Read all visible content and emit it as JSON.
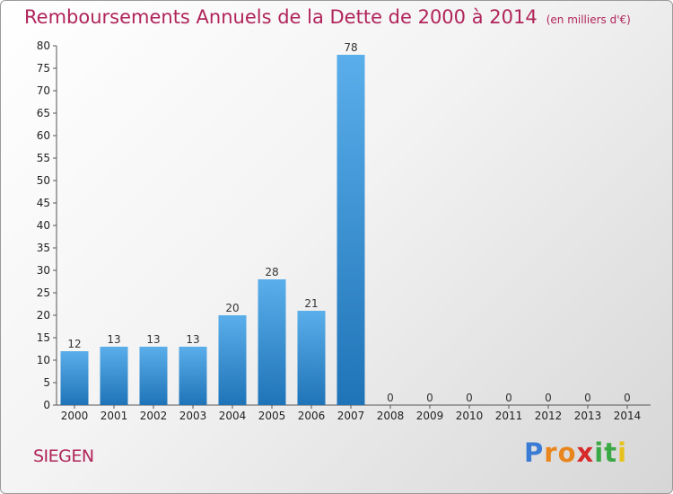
{
  "title": "Remboursements Annuels de la Dette de 2000 à 2014",
  "unit": "(en milliers d'€)",
  "city": "SIEGEN",
  "brand": {
    "letters": [
      {
        "ch": "P",
        "color": "#3a7bd5"
      },
      {
        "ch": "r",
        "color": "#e8851c"
      },
      {
        "ch": "o",
        "color": "#e8851c"
      },
      {
        "ch": "x",
        "color": "#d62a2a"
      },
      {
        "ch": "i",
        "color": "#3aa845"
      },
      {
        "ch": "t",
        "color": "#3aa845"
      },
      {
        "ch": "i",
        "color": "#e8c21c"
      }
    ]
  },
  "colors": {
    "bar_light": "#5aaeea",
    "bar_dark": "#1f74b8",
    "title": "#b0245a"
  },
  "chart_data": {
    "type": "bar",
    "title": "Remboursements Annuels de la Dette de 2000 à 2014",
    "subtitle": "(en milliers d'€)",
    "categories": [
      "2000",
      "2001",
      "2002",
      "2003",
      "2004",
      "2005",
      "2006",
      "2007",
      "2008",
      "2009",
      "2010",
      "2011",
      "2012",
      "2013",
      "2014"
    ],
    "values": [
      12,
      13,
      13,
      13,
      20,
      28,
      21,
      78,
      0,
      0,
      0,
      0,
      0,
      0,
      0
    ],
    "data_labels": [
      "12",
      "13",
      "13",
      "13",
      "20",
      "28",
      "21",
      "78",
      "0",
      "0",
      "0",
      "0",
      "0",
      "0",
      "0"
    ],
    "yticks": [
      "0",
      "5",
      "10",
      "15",
      "20",
      "25",
      "30",
      "35",
      "40",
      "45",
      "50",
      "55",
      "60",
      "65",
      "70",
      "75",
      "80"
    ],
    "ylim": [
      0,
      80
    ],
    "grid": false
  }
}
